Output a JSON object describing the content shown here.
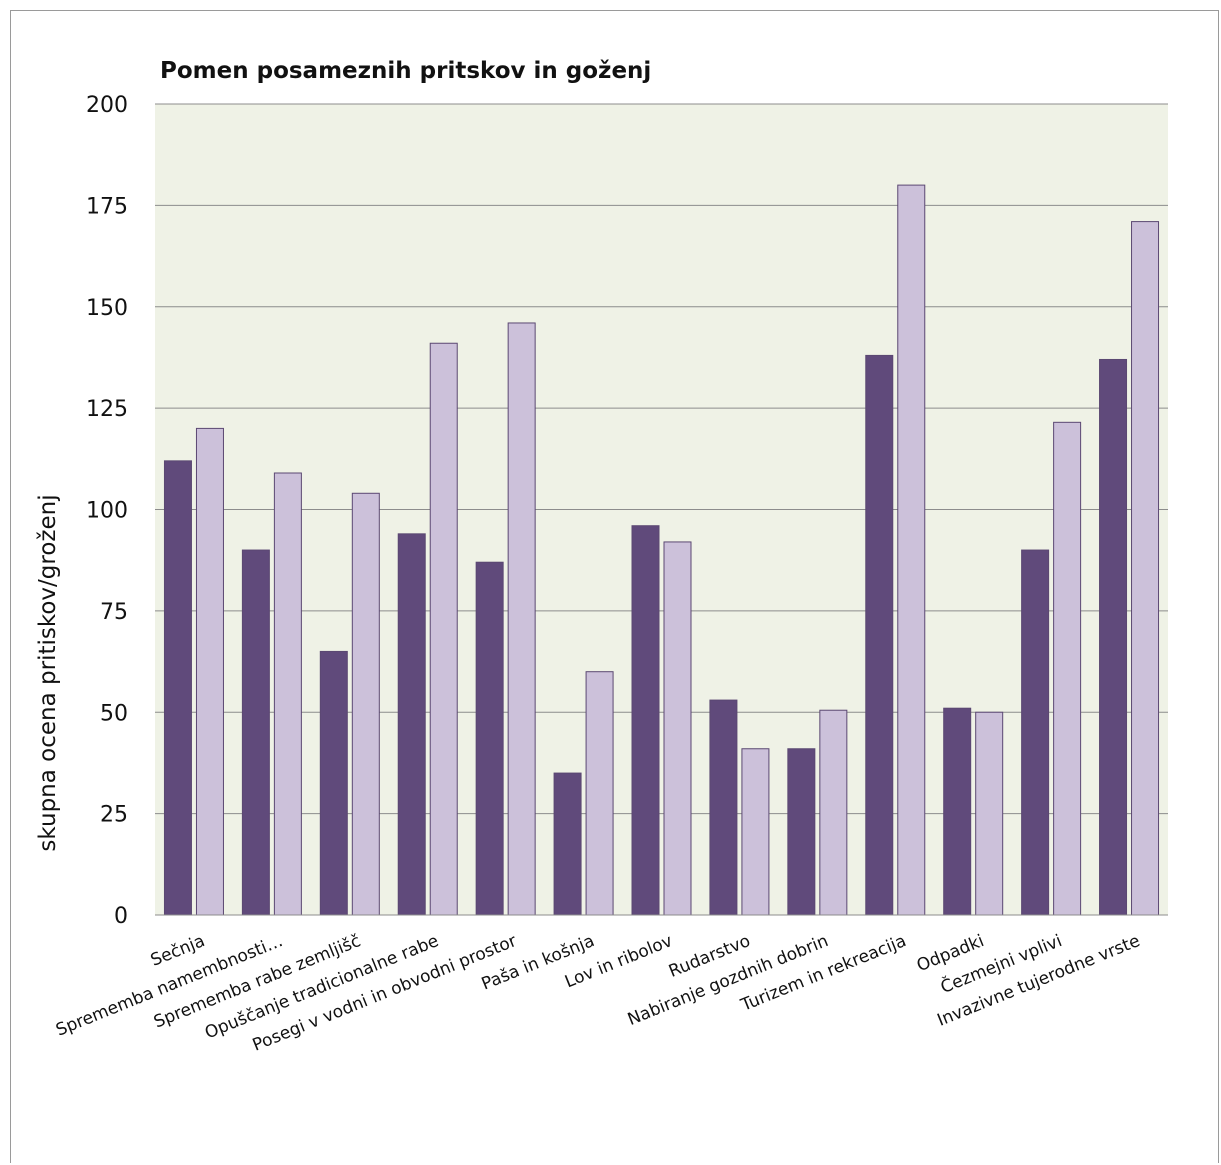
{
  "chart_data": {
    "type": "bar",
    "title": "Pomen posameznih pritskov in goženj",
    "ylabel": "skupna ocena pritiskov/groženj",
    "xlabel": "",
    "ylim": [
      0,
      200
    ],
    "yticks": [
      0,
      25,
      50,
      75,
      100,
      125,
      150,
      175,
      200
    ],
    "grid": true,
    "legend": "none",
    "categories": [
      "Sečnja",
      "Sprememba namembnosti…",
      "Sprememba rabe zemljišč",
      "Opuščanje tradicionalne rabe",
      "Posegi v vodni in obvodni prostor",
      "Paša in košnja",
      "Lov in ribolov",
      "Rudarstvo",
      "Nabiranje gozdnih dobrin",
      "Turizem in rekreacija",
      "Odpadki",
      "Čezmejni vplivi",
      "Invazivne tujerodne vrste"
    ],
    "series": [
      {
        "color": "#604a7b",
        "values": [
          112,
          90,
          65,
          94,
          87,
          35,
          96,
          53,
          41,
          138,
          51,
          90,
          137
        ]
      },
      {
        "color": "#ccc1da",
        "values": [
          120,
          109,
          104,
          141,
          146,
          60,
          92,
          41,
          50.5,
          180,
          50,
          121.5,
          171
        ]
      }
    ],
    "plot_background": "#eff2e6",
    "gridline_color": "#8c8c8c"
  }
}
